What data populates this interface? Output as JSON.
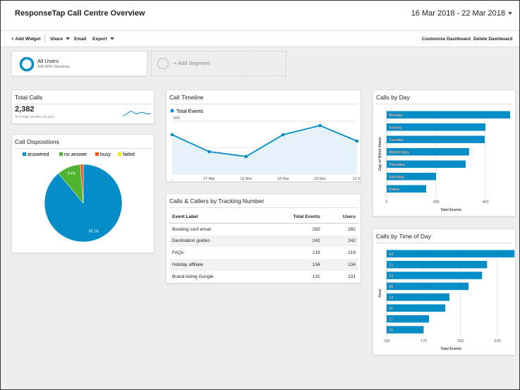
{
  "header": {
    "title": "ResponseTap Call Centre Overview",
    "date_range": "16 Mar 2018 - 22 Mar 2018"
  },
  "toolbar": {
    "left": [
      "+ Add Widget",
      "Share",
      "Email",
      "Export"
    ],
    "right": [
      "Customise Dashboard",
      "Delete Dashboard"
    ]
  },
  "segments": {
    "active": {
      "name": "All Users",
      "detail": "100.00% Sessions"
    },
    "add": "+ Add Segment"
  },
  "total_calls": {
    "title": "Total Calls",
    "value": "2,382",
    "detail": "% of Total: 15.98% (15,141)"
  },
  "call_dispositions": {
    "type": "pie",
    "title": "Call Dispositions",
    "categories": [
      "answered",
      "no answer",
      "busy",
      "failed"
    ],
    "values": [
      85.1,
      9.4,
      1.2,
      0
    ],
    "value_labels": [
      "85.1%",
      "9.4%",
      null,
      null
    ],
    "colors": [
      "#058dc7",
      "#50b432",
      "#ed561b",
      "#edef00"
    ]
  },
  "call_timeline": {
    "type": "line",
    "title": "Call Timeline",
    "categories": [
      "...",
      "17 Mar",
      "18 Mar",
      "19 Mar",
      "20 Mar",
      "21 M"
    ],
    "series": [
      {
        "name": "Total Events",
        "color": "#058dc7",
        "values": [
          446,
          251,
          195,
          446,
          551,
          373
        ]
      }
    ],
    "ylim": [
      0,
      600
    ],
    "yticks": [
      300,
      600
    ],
    "grid": true
  },
  "tracking_table": {
    "title": "Calls & Callers by Tracking Number",
    "columns": [
      "Event Label",
      "Total Events",
      "Users"
    ],
    "rows": [
      [
        "Booking conf email",
        "292",
        "292"
      ],
      [
        "Destination guides",
        "242",
        "242"
      ],
      [
        "FAQs",
        "219",
        "219"
      ],
      [
        "Holiday affiliate",
        "134",
        "134"
      ],
      [
        "Brand listing Google",
        "131",
        "131"
      ]
    ]
  },
  "calls_by_day": {
    "type": "hbar",
    "title": "Calls by Day",
    "categories": [
      "Monday",
      "Sunday",
      "Tuesday",
      "Wednesday",
      "Thursday",
      "Saturday",
      "Friday"
    ],
    "values": [
      500,
      400,
      397,
      334,
      320,
      200,
      160
    ],
    "color": "#058dc7",
    "xlim": [
      0,
      500
    ],
    "xticks": [
      0,
      200,
      400
    ],
    "x_label": "Total Events",
    "y_label": "Day of Week Name",
    "grid": true
  },
  "calls_by_time": {
    "type": "hbar",
    "title": "Calls by Time of Day",
    "categories": [
      "10",
      "12",
      "13",
      "09",
      "14",
      "16",
      "11",
      "15"
    ],
    "values": [
      236.6,
      218,
      214.6,
      205.5,
      192.5,
      189.7,
      178.7,
      175
    ],
    "color": "#058dc7",
    "xlim": [
      150,
      240
    ],
    "xticks": [
      150,
      175,
      200,
      225
    ],
    "x_label": "Total Events",
    "y_label": "Hour",
    "grid": true
  }
}
